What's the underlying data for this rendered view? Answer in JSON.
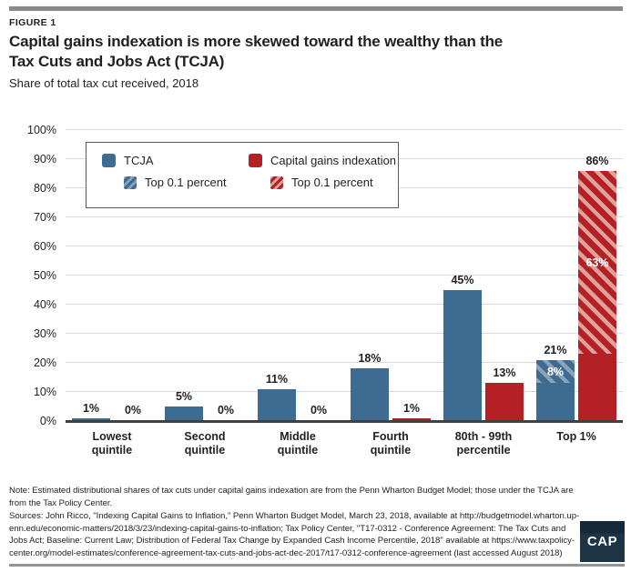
{
  "figure_label": "FIGURE 1",
  "title_lines": [
    "Capital gains indexation is more skewed toward the wealthy than the",
    "Tax Cuts and Jobs Act (TCJA)"
  ],
  "subtitle": "Share of total tax cut received, 2018",
  "legend": {
    "tcja_label": "TCJA",
    "cgi_label": "Capital gains indexation",
    "top01_label_tcja": "Top 0.1 percent",
    "top01_label_cgi": "Top 0.1 percent"
  },
  "chart_data": {
    "type": "bar",
    "title": "Capital gains indexation is more skewed toward the wealthy than the Tax Cuts and Jobs Act (TCJA)",
    "subtitle": "Share of total tax cut received, 2018",
    "categories": [
      "Lowest quintile",
      "Second quintile",
      "Middle quintile",
      "Fourth quintile",
      "80th - 99th percentile",
      "Top 1%"
    ],
    "series": [
      {
        "name": "TCJA",
        "color": "#3e6b92",
        "hatch_light": "#8ba3b9",
        "values": [
          1,
          5,
          11,
          18,
          45,
          21
        ],
        "top_0_1_percent_values": [
          null,
          null,
          null,
          null,
          null,
          8
        ]
      },
      {
        "name": "Capital gains indexation",
        "color": "#b52025",
        "hatch_light": "#e0a29d",
        "values": [
          0,
          0,
          0,
          1,
          13,
          86
        ],
        "top_0_1_percent_values": [
          null,
          null,
          null,
          null,
          null,
          63
        ]
      }
    ],
    "xlabel": "",
    "ylabel": "",
    "ylim": [
      0,
      100
    ],
    "ytick_step": 10,
    "ytick_suffix": "%",
    "value_label_suffix": "%",
    "grid": true,
    "legend_position": "top-left"
  },
  "note_lines": [
    "Note: Estimated distributional shares of tax cuts under capital gains indexation are from the Penn Wharton Budget Model; those under the TCJA are",
    "from the Tax Policy Center."
  ],
  "sources_lines": [
    "Sources: John Ricco, \"Indexing Capital Gains to Inflation,\" Penn Wharton Budget Model, March 23, 2018, available at http://budgetmodel.wharton.up-",
    "enn.edu/economic-matters/2018/3/23/indexing-capital-gains-to-inflation; Tax Policy Center, \"T17-0312 - Conference Agreement: The Tax Cuts and",
    "Jobs Act; Baseline: Current Law; Distribution of Federal Tax Change by Expanded Cash Income Percentile, 2018\" available at https://www.taxpolicy-",
    "center.org/model-estimates/conference-agreement-tax-cuts-and-jobs-act-dec-2017/t17-0312-conference-agreement (last accessed August 2018)"
  ],
  "logo_text": "CAP",
  "colors": {
    "tcja": "#3e6b92",
    "tcja_hatch_light": "#8ba3b9",
    "cgi": "#b52025",
    "cgi_hatch_light": "#e0a29d",
    "text": "#231f20",
    "gridline": "#d9d9d9",
    "axis_line": "#414042",
    "top_rule": "#87898c",
    "bottom_rule": "#939598",
    "legend_border": "#58595b",
    "logo_bg": "#1d3444"
  }
}
